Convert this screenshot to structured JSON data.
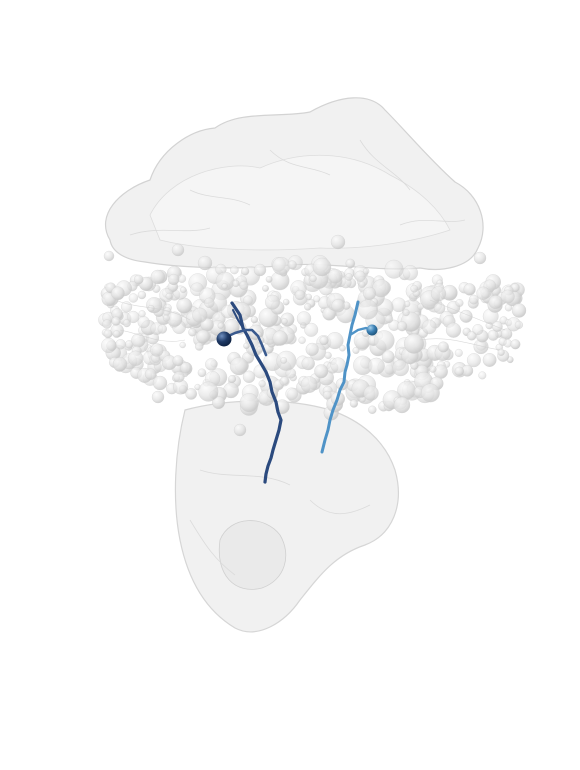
{
  "scene": {
    "subject": "brain-volume-render",
    "background_color": "#ffffff",
    "volume_fill_color": "#e6e6e6",
    "volume_edge_color": "#c9c9c9",
    "sphere_color": "#dcdcdc",
    "sphere_highlight_color": "#fafafa"
  },
  "neurons": [
    {
      "id": "neuron-left",
      "color": "#2b4a7e",
      "soma_color": "#1f3a66"
    },
    {
      "id": "neuron-right",
      "color": "#4f93c7",
      "soma_color": "#3a7fb3"
    }
  ]
}
